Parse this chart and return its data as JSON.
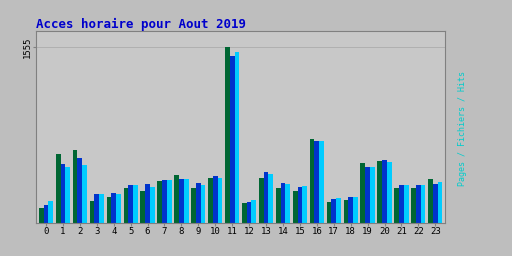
{
  "title": "Acces horaire pour Aout 2019",
  "title_color": "#0000cc",
  "title_fontsize": 9,
  "background_color": "#bebebe",
  "plot_bg_color": "#c8c8c8",
  "grid_color": "#b0b0b0",
  "hours": [
    0,
    1,
    2,
    3,
    4,
    5,
    6,
    7,
    8,
    9,
    10,
    11,
    12,
    13,
    14,
    15,
    16,
    17,
    18,
    19,
    20,
    21,
    22,
    23
  ],
  "pages": [
    130,
    610,
    640,
    190,
    230,
    305,
    285,
    370,
    420,
    305,
    395,
    1560,
    175,
    395,
    305,
    285,
    740,
    185,
    200,
    530,
    550,
    305,
    305,
    385
  ],
  "fichiers": [
    160,
    520,
    570,
    255,
    265,
    330,
    340,
    380,
    385,
    350,
    410,
    1480,
    185,
    450,
    350,
    320,
    720,
    210,
    225,
    495,
    555,
    335,
    330,
    345
  ],
  "hits": [
    195,
    495,
    510,
    255,
    250,
    330,
    315,
    375,
    385,
    335,
    400,
    1510,
    200,
    430,
    345,
    325,
    720,
    215,
    230,
    495,
    540,
    335,
    330,
    360
  ],
  "color_pages": "#006633",
  "color_fichiers": "#0033cc",
  "color_hits": "#00ccff",
  "ylim_max": 1700,
  "ytick_val": 1555,
  "bar_width": 0.28,
  "border_color": "#808080",
  "ylabel_pages_color": "#009900",
  "ylabel_fichiers_color": "#0000ff",
  "ylabel_hits_color": "#00cccc"
}
